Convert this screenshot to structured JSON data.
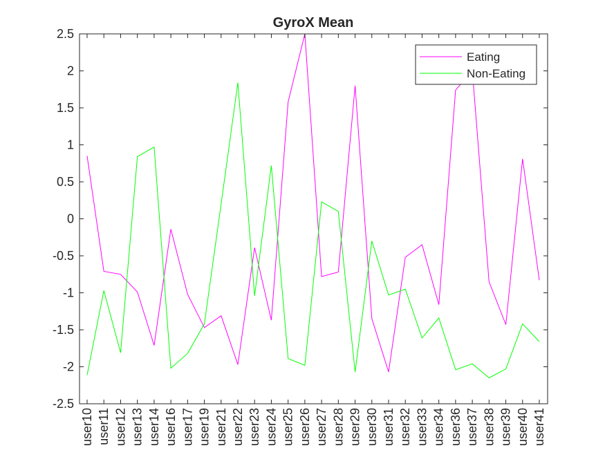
{
  "chart_data": {
    "type": "line",
    "title": "GyroX Mean",
    "xlabel": "",
    "ylabel": "",
    "ylim": [
      -2.5,
      2.5
    ],
    "yticks": [
      2.5,
      2,
      1.5,
      1,
      0.5,
      0,
      -0.5,
      -1,
      -1.5,
      -2,
      -2.5
    ],
    "ytick_labels": [
      "2.5",
      "2",
      "1.5",
      "1",
      "0.5",
      "0",
      "-0.5",
      "-1",
      "-1.5",
      "-2",
      "-2.5"
    ],
    "categories": [
      "user10",
      "user11",
      "user12",
      "user13",
      "user14",
      "user16",
      "user17",
      "user19",
      "user21",
      "user22",
      "user23",
      "user24",
      "user25",
      "user26",
      "user27",
      "user28",
      "user29",
      "user30",
      "user31",
      "user32",
      "user33",
      "user34",
      "user36",
      "user37",
      "user38",
      "user39",
      "user40",
      "user41"
    ],
    "series": [
      {
        "name": "Eating",
        "color": "#ff00ff",
        "values": [
          0.85,
          -0.71,
          -0.75,
          -0.99,
          -1.71,
          -0.14,
          -1.02,
          -1.47,
          -1.31,
          -1.97,
          -0.39,
          -1.37,
          1.58,
          2.5,
          -0.78,
          -0.72,
          1.8,
          -1.35,
          -2.07,
          -0.52,
          -0.35,
          -1.16,
          1.74,
          2.0,
          -0.85,
          -1.43,
          0.81,
          -0.83
        ]
      },
      {
        "name": "Non-Eating",
        "color": "#00ff00",
        "values": [
          -2.11,
          -0.97,
          -1.81,
          0.84,
          0.97,
          -2.02,
          -1.82,
          -1.42,
          0.2,
          1.84,
          -1.04,
          0.72,
          -1.89,
          -1.98,
          0.23,
          0.1,
          -2.07,
          -0.3,
          -1.03,
          -0.95,
          -1.61,
          -1.34,
          -2.04,
          -1.96,
          -2.15,
          -2.03,
          -1.42,
          -1.66
        ]
      }
    ],
    "legend": {
      "position": "top-right"
    },
    "grid": false
  }
}
